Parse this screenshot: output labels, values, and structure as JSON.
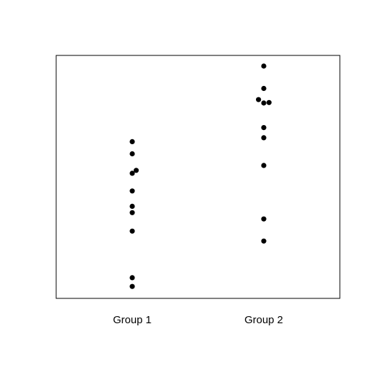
{
  "chart_data": {
    "type": "scatter",
    "title": "",
    "xlabel": "",
    "ylabel": "",
    "categories": [
      "Group 1",
      "Group 2"
    ],
    "ylim": [
      0,
      100
    ],
    "grid": false,
    "legend": "none",
    "point_color": "#000000",
    "frame_color": "#000000",
    "points": [
      {
        "group": 0,
        "jitter": 0.0,
        "y": 64.5
      },
      {
        "group": 0,
        "jitter": 0.0,
        "y": 59.5
      },
      {
        "group": 0,
        "jitter": 0.03,
        "y": 52.7
      },
      {
        "group": 0,
        "jitter": 0.0,
        "y": 51.5
      },
      {
        "group": 0,
        "jitter": 0.0,
        "y": 44.2
      },
      {
        "group": 0,
        "jitter": 0.0,
        "y": 37.9
      },
      {
        "group": 0,
        "jitter": 0.0,
        "y": 35.3
      },
      {
        "group": 0,
        "jitter": 0.0,
        "y": 27.7
      },
      {
        "group": 0,
        "jitter": 0.0,
        "y": 8.5
      },
      {
        "group": 0,
        "jitter": 0.0,
        "y": 4.9
      },
      {
        "group": 1,
        "jitter": 0.0,
        "y": 95.6
      },
      {
        "group": 1,
        "jitter": 0.0,
        "y": 86.4
      },
      {
        "group": 1,
        "jitter": -0.04,
        "y": 81.8
      },
      {
        "group": 1,
        "jitter": 0.0,
        "y": 80.4
      },
      {
        "group": 1,
        "jitter": 0.04,
        "y": 80.6
      },
      {
        "group": 1,
        "jitter": 0.0,
        "y": 70.3
      },
      {
        "group": 1,
        "jitter": 0.0,
        "y": 66.1
      },
      {
        "group": 1,
        "jitter": 0.0,
        "y": 54.7
      },
      {
        "group": 1,
        "jitter": 0.0,
        "y": 32.7
      },
      {
        "group": 1,
        "jitter": 0.0,
        "y": 23.6
      }
    ]
  }
}
